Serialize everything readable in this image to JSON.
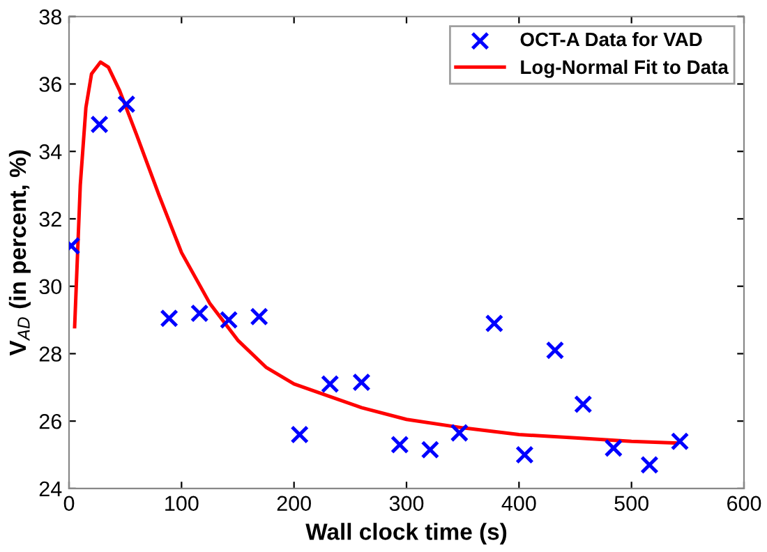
{
  "chart_data": {
    "type": "scatter",
    "xlabel": "Wall clock time (s)",
    "ylabel": "V$_{AD}$ (in percent, %)",
    "xlim": [
      0,
      600
    ],
    "xticks": [
      0,
      100,
      200,
      300,
      400,
      500,
      600
    ],
    "ylim": [
      24,
      38
    ],
    "yticks": [
      24,
      26,
      28,
      30,
      32,
      34,
      36,
      38
    ],
    "grid": false,
    "legend": "top right",
    "series": [
      {
        "name": "OCT-A Data for VAD",
        "marker": "cross",
        "color": "#0000ff",
        "x": [
          2,
          27,
          51,
          89,
          116,
          142,
          169,
          205,
          232,
          260,
          294,
          321,
          347,
          378,
          405,
          432,
          457,
          484,
          516,
          543
        ],
        "values": [
          31.2,
          34.8,
          35.4,
          29.05,
          29.2,
          29.0,
          29.1,
          25.6,
          27.1,
          27.15,
          25.3,
          25.15,
          25.65,
          28.9,
          25.0,
          28.1,
          26.5,
          25.2,
          24.7,
          25.4
        ]
      },
      {
        "name": "Log-Normal Fit to Data",
        "type": "line",
        "line_style": "solid",
        "color": "#ff0000",
        "x": [
          5,
          10,
          15,
          20,
          28,
          35,
          45,
          60,
          80,
          100,
          125,
          150,
          175,
          200,
          230,
          260,
          300,
          350,
          400,
          450,
          500,
          540
        ],
        "values": [
          28.8,
          33.0,
          35.3,
          36.3,
          36.65,
          36.5,
          35.8,
          34.5,
          32.7,
          31.0,
          29.5,
          28.4,
          27.6,
          27.1,
          26.75,
          26.4,
          26.05,
          25.8,
          25.6,
          25.5,
          25.4,
          25.35
        ]
      }
    ]
  }
}
